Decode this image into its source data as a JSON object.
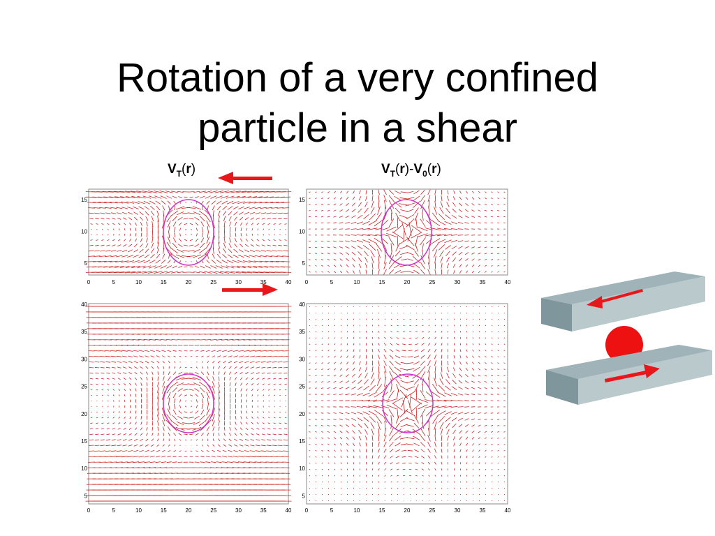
{
  "slide": {
    "title_line1": "Rotation of a very confined",
    "title_line2": "particle in a shear"
  },
  "labels": {
    "left": {
      "main": "V",
      "sub": "T",
      "paren_open": "(",
      "var": "r",
      "paren_close": ")"
    },
    "right": {
      "main1": "V",
      "sub1": "T",
      "po1": "(",
      "var1": "r",
      "pc1": ")",
      "minus": "-",
      "main2": "V",
      "sub2": "0",
      "po2": "(",
      "var2": "r",
      "pc2": ")"
    }
  },
  "plots": {
    "top_x_ticks": [
      "0",
      "5",
      "10",
      "15",
      "20",
      "25",
      "30",
      "35",
      "40"
    ],
    "top_y_ticks": [
      "15",
      "10",
      "5"
    ],
    "bottom_x_ticks": [
      "0",
      "5",
      "10",
      "15",
      "20",
      "25",
      "30",
      "35",
      "40"
    ],
    "bottom_y_ticks": [
      "40",
      "35",
      "30",
      "25",
      "20",
      "15",
      "10",
      "5"
    ]
  },
  "colors": {
    "vector": "#cc2222",
    "particle_outline": "#cc33cc",
    "arrow": "#e8171b",
    "plate_top": "#9fb3b8",
    "plate_side": "#7e969c",
    "ball": "#ee1111"
  },
  "icons": [
    "shear-arrow-left",
    "shear-arrow-right",
    "shear-plates-diagram"
  ]
}
